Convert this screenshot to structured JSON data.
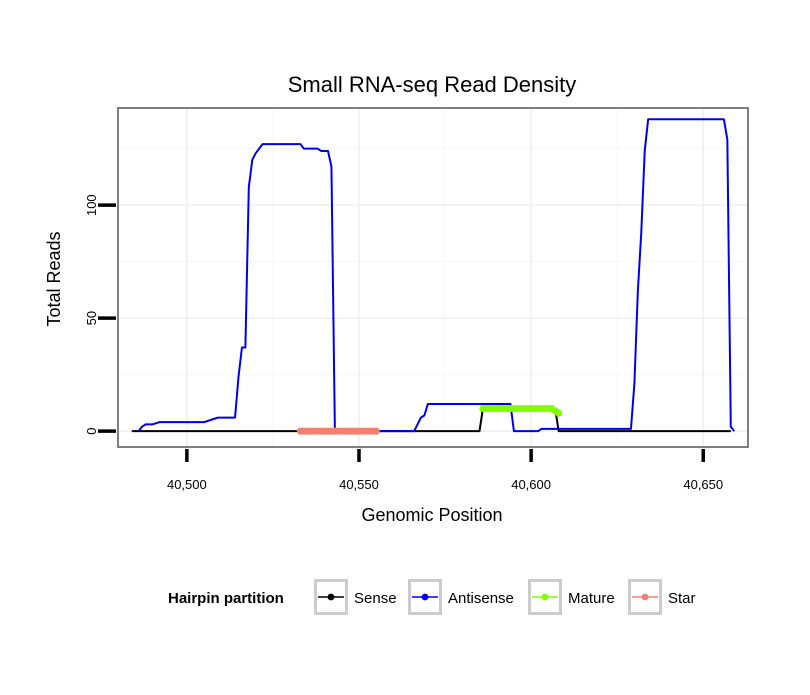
{
  "chart_data": {
    "type": "line",
    "title": "Small RNA-seq Read Density",
    "xlabel": "Genomic Position",
    "ylabel": "Total Reads",
    "xlim": [
      40480,
      40663
    ],
    "ylim": [
      -7,
      143
    ],
    "x_ticks": [
      40500,
      40550,
      40600,
      40650
    ],
    "x_tick_labels": [
      "40,500",
      "40,550",
      "40,600",
      "40,650"
    ],
    "x_minor_ticks": [
      40525,
      40575,
      40625
    ],
    "y_ticks": [
      0,
      50,
      100
    ],
    "y_tick_labels": [
      "0",
      "50",
      "100"
    ],
    "y_minor_ticks": [
      25,
      75,
      125
    ],
    "legend": {
      "title": "Hairpin partition",
      "position": "bottom"
    },
    "series": [
      {
        "name": "Sense",
        "color": "#000000",
        "style": "line",
        "points": [
          [
            40484,
            0
          ],
          [
            40585,
            0
          ],
          [
            40586,
            10
          ],
          [
            40594,
            10
          ],
          [
            40607,
            10
          ],
          [
            40608,
            0
          ],
          [
            40612,
            0
          ],
          [
            40658,
            0
          ]
        ]
      },
      {
        "name": "Antisense",
        "color": "#0000ee",
        "style": "line",
        "points": [
          [
            40486,
            0
          ],
          [
            40487,
            2
          ],
          [
            40488,
            3
          ],
          [
            40490,
            3
          ],
          [
            40492,
            4
          ],
          [
            40496,
            4
          ],
          [
            40502,
            4
          ],
          [
            40505,
            4
          ],
          [
            40507,
            5
          ],
          [
            40509,
            6
          ],
          [
            40513,
            6
          ],
          [
            40514,
            6
          ],
          [
            40515,
            24
          ],
          [
            40516,
            37
          ],
          [
            40517,
            37
          ],
          [
            40518,
            108
          ],
          [
            40519,
            120
          ],
          [
            40520,
            123
          ],
          [
            40522,
            127
          ],
          [
            40525,
            127
          ],
          [
            40530,
            127
          ],
          [
            40533,
            127
          ],
          [
            40534,
            125
          ],
          [
            40538,
            125
          ],
          [
            40539,
            124
          ],
          [
            40541,
            124
          ],
          [
            40542,
            117
          ],
          [
            40543,
            0
          ],
          [
            40566,
            0
          ],
          [
            40567,
            3
          ],
          [
            40568,
            6
          ],
          [
            40569,
            7
          ],
          [
            40570,
            12
          ],
          [
            40575,
            12
          ],
          [
            40580,
            12
          ],
          [
            40590,
            12
          ],
          [
            40594,
            12
          ],
          [
            40595,
            0
          ],
          [
            40602,
            0
          ],
          [
            40603,
            1
          ],
          [
            40605,
            1
          ],
          [
            40613,
            1
          ],
          [
            40620,
            1
          ],
          [
            40629,
            1
          ],
          [
            40630,
            21
          ],
          [
            40631,
            62
          ],
          [
            40632,
            88
          ],
          [
            40633,
            124
          ],
          [
            40634,
            138
          ],
          [
            40636,
            138
          ],
          [
            40645,
            138
          ],
          [
            40656,
            138
          ],
          [
            40657,
            129
          ],
          [
            40658,
            2
          ],
          [
            40659,
            0
          ]
        ]
      },
      {
        "name": "Mature",
        "color": "#7fff00",
        "style": "line+points",
        "points": [
          [
            40586,
            10
          ],
          [
            40587,
            10
          ],
          [
            40588,
            10
          ],
          [
            40589,
            10
          ],
          [
            40590,
            10
          ],
          [
            40591,
            10
          ],
          [
            40592,
            10
          ],
          [
            40593,
            10
          ],
          [
            40594,
            10
          ],
          [
            40595,
            10
          ],
          [
            40596,
            10
          ],
          [
            40597,
            10
          ],
          [
            40598,
            10
          ],
          [
            40599,
            10
          ],
          [
            40600,
            10
          ],
          [
            40601,
            10
          ],
          [
            40602,
            10
          ],
          [
            40603,
            10
          ],
          [
            40604,
            10
          ],
          [
            40605,
            10
          ],
          [
            40606,
            10
          ],
          [
            40607,
            9
          ],
          [
            40608,
            8
          ]
        ]
      },
      {
        "name": "Star",
        "color": "#f08070",
        "style": "line+points",
        "points": [
          [
            40533,
            0
          ],
          [
            40534,
            0
          ],
          [
            40535,
            0
          ],
          [
            40536,
            0
          ],
          [
            40537,
            0
          ],
          [
            40538,
            0
          ],
          [
            40539,
            0
          ],
          [
            40540,
            0
          ],
          [
            40541,
            0
          ],
          [
            40542,
            0
          ],
          [
            40543,
            0
          ],
          [
            40544,
            0
          ],
          [
            40545,
            0
          ],
          [
            40546,
            0
          ],
          [
            40547,
            0
          ],
          [
            40548,
            0
          ],
          [
            40549,
            0
          ],
          [
            40550,
            0
          ],
          [
            40551,
            0
          ],
          [
            40552,
            0
          ],
          [
            40553,
            0
          ],
          [
            40554,
            0
          ],
          [
            40555,
            0
          ]
        ]
      }
    ]
  }
}
